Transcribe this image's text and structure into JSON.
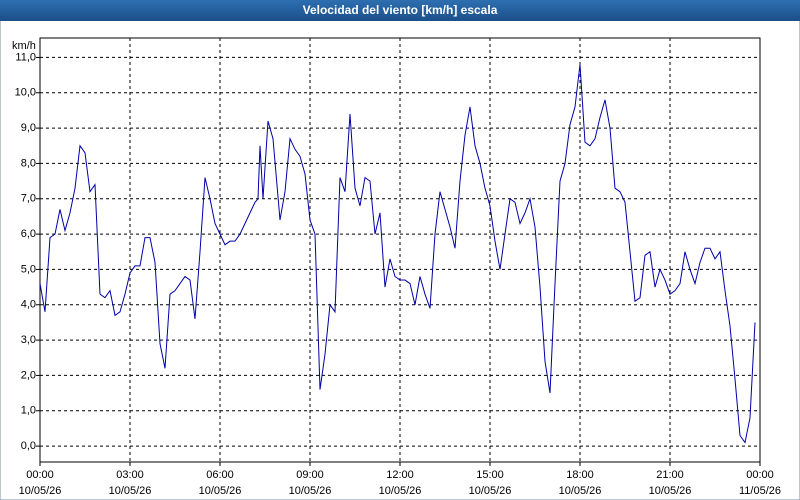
{
  "chart_data": {
    "type": "line",
    "title": "Velocidad del viento [km/h] escala",
    "y_label": "km/h",
    "xlim": [
      0,
      1440
    ],
    "ylim": [
      -0.45,
      11.55
    ],
    "grid": true,
    "series": [
      {
        "color": "#0000a8",
        "x": [
          0,
          10,
          20,
          30,
          40,
          50,
          60,
          70,
          80,
          90,
          100,
          110,
          120,
          130,
          140,
          150,
          160,
          170,
          180,
          190,
          200,
          210,
          220,
          230,
          240,
          250,
          260,
          270,
          280,
          290,
          300,
          310,
          320,
          330,
          340,
          350,
          360,
          370,
          380,
          390,
          400,
          410,
          420,
          430,
          436,
          440,
          446,
          456,
          466,
          480,
          490,
          500,
          510,
          520,
          530,
          540,
          550,
          560,
          570,
          580,
          590,
          600,
          610,
          620,
          630,
          640,
          650,
          660,
          670,
          680,
          690,
          700,
          710,
          720,
          730,
          740,
          750,
          760,
          770,
          780,
          790,
          800,
          810,
          820,
          830,
          840,
          850,
          860,
          870,
          880,
          890,
          900,
          910,
          920,
          930,
          940,
          950,
          960,
          970,
          980,
          990,
          1000,
          1010,
          1020,
          1030,
          1040,
          1050,
          1060,
          1070,
          1080,
          1090,
          1100,
          1110,
          1120,
          1130,
          1140,
          1150,
          1160,
          1170,
          1180,
          1190,
          1200,
          1210,
          1220,
          1230,
          1240,
          1250,
          1260,
          1270,
          1280,
          1290,
          1300,
          1310,
          1320,
          1330,
          1340,
          1350,
          1360,
          1370,
          1380,
          1390,
          1400,
          1410,
          1420,
          1430
        ],
        "values": [
          4.6,
          3.8,
          5.9,
          6.0,
          6.7,
          6.1,
          6.6,
          7.3,
          8.5,
          8.3,
          7.2,
          7.4,
          4.3,
          4.2,
          4.4,
          3.7,
          3.8,
          4.3,
          4.9,
          5.1,
          5.1,
          5.9,
          5.9,
          5.2,
          2.9,
          2.2,
          4.3,
          4.4,
          4.6,
          4.8,
          4.7,
          3.6,
          5.5,
          7.6,
          7.0,
          6.3,
          6.0,
          5.7,
          5.8,
          5.8,
          6.0,
          6.3,
          6.6,
          6.9,
          7.0,
          8.5,
          7.0,
          9.2,
          8.7,
          6.4,
          7.2,
          8.7,
          8.4,
          8.2,
          7.7,
          6.4,
          6.0,
          1.6,
          2.6,
          4.0,
          3.8,
          7.6,
          7.2,
          9.4,
          7.3,
          6.8,
          7.6,
          7.5,
          6.0,
          6.6,
          4.5,
          5.3,
          4.8,
          4.7,
          4.7,
          4.6,
          4.0,
          4.8,
          4.3,
          3.9,
          6.0,
          7.2,
          6.7,
          6.2,
          5.6,
          7.5,
          8.8,
          9.6,
          8.5,
          8.0,
          7.3,
          6.8,
          5.8,
          5.0,
          6.0,
          7.0,
          6.9,
          6.3,
          6.6,
          7.0,
          6.2,
          4.5,
          2.4,
          1.5,
          4.6,
          7.5,
          8.0,
          9.1,
          9.6,
          10.8,
          8.6,
          8.5,
          8.7,
          9.3,
          9.8,
          9.0,
          7.3,
          7.2,
          6.9,
          5.5,
          4.1,
          4.2,
          5.4,
          5.5,
          4.5,
          5.0,
          4.7,
          4.3,
          4.4,
          4.6,
          5.5,
          5.0,
          4.6,
          5.2,
          5.6,
          5.6,
          5.3,
          5.5,
          4.4,
          3.4,
          1.9,
          0.3,
          0.1,
          0.8,
          3.5
        ]
      }
    ],
    "xticks": [
      {
        "value": 0,
        "label": "00:00",
        "date": "10/05/26"
      },
      {
        "value": 180,
        "label": "03:00",
        "date": "10/05/26"
      },
      {
        "value": 360,
        "label": "06:00",
        "date": "10/05/26"
      },
      {
        "value": 540,
        "label": "09:00",
        "date": "10/05/26"
      },
      {
        "value": 720,
        "label": "12:00",
        "date": "10/05/26"
      },
      {
        "value": 900,
        "label": "15:00",
        "date": "10/05/26"
      },
      {
        "value": 1080,
        "label": "18:00",
        "date": "10/05/26"
      },
      {
        "value": 1260,
        "label": "21:00",
        "date": "10/05/26"
      },
      {
        "value": 1440,
        "label": "00:00",
        "date": "11/05/26"
      }
    ],
    "yticks": [
      {
        "value": 0,
        "label": "0,0"
      },
      {
        "value": 1,
        "label": "1,0"
      },
      {
        "value": 2,
        "label": "2,0"
      },
      {
        "value": 3,
        "label": "3,0"
      },
      {
        "value": 4,
        "label": "4,0"
      },
      {
        "value": 5,
        "label": "5,0"
      },
      {
        "value": 6,
        "label": "6,0"
      },
      {
        "value": 7,
        "label": "7,0"
      },
      {
        "value": 8,
        "label": "8,0"
      },
      {
        "value": 9,
        "label": "9,0"
      },
      {
        "value": 10,
        "label": "10,0"
      },
      {
        "value": 11,
        "label": "11,0"
      }
    ]
  }
}
